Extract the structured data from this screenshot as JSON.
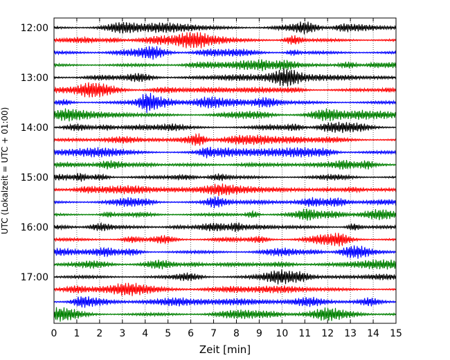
{
  "chart_data": {
    "type": "line",
    "title": "",
    "xlabel": "Zeit  [min]",
    "ylabel": "UTC (Lokalzeit = UTC + 01:00)",
    "xlim": [
      0,
      15
    ],
    "x_ticks": [
      "0",
      "1",
      "2",
      "3",
      "4",
      "5",
      "6",
      "7",
      "8",
      "9",
      "10",
      "11",
      "12",
      "13",
      "14",
      "15"
    ],
    "y_ticks": [
      "12:00",
      "13:00",
      "14:00",
      "15:00",
      "16:00",
      "17:00"
    ],
    "grid": "vertical dotted",
    "trace_interval_min": 15,
    "trace_count": 24,
    "trace_colors": [
      "#000000",
      "#ff0000",
      "#0000ff",
      "#008000"
    ],
    "series": [
      {
        "start": "12:00"
      },
      {
        "start": "12:15"
      },
      {
        "start": "12:30"
      },
      {
        "start": "12:45"
      },
      {
        "start": "13:00"
      },
      {
        "start": "13:15"
      },
      {
        "start": "13:30"
      },
      {
        "start": "13:45"
      },
      {
        "start": "14:00"
      },
      {
        "start": "14:15"
      },
      {
        "start": "14:30"
      },
      {
        "start": "14:45"
      },
      {
        "start": "15:00"
      },
      {
        "start": "15:15"
      },
      {
        "start": "15:30"
      },
      {
        "start": "15:45"
      },
      {
        "start": "16:00"
      },
      {
        "start": "16:15"
      },
      {
        "start": "16:30"
      },
      {
        "start": "16:45"
      },
      {
        "start": "17:00"
      },
      {
        "start": "17:15"
      },
      {
        "start": "17:30"
      },
      {
        "start": "17:45"
      }
    ]
  }
}
